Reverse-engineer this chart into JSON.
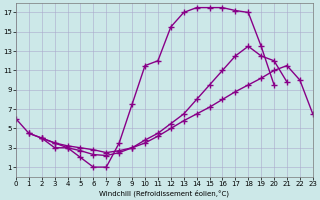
{
  "xlabel": "Windchill (Refroidissement éolien,°C)",
  "bg_color": "#cce8e8",
  "line_color": "#880088",
  "line1": {
    "x": [
      0,
      1,
      2,
      3,
      4,
      5,
      6,
      7,
      8,
      9,
      10,
      11,
      12,
      13,
      14,
      15,
      16,
      17,
      18,
      19,
      20
    ],
    "y": [
      6.0,
      4.5,
      4.0,
      3.0,
      3.0,
      2.0,
      1.0,
      1.0,
      3.5,
      7.5,
      11.5,
      12.0,
      15.5,
      17.0,
      17.5,
      17.5,
      17.5,
      17.2,
      17.0,
      13.5,
      9.5
    ]
  },
  "line2": {
    "x": [
      2,
      3,
      4,
      5,
      6,
      7,
      8,
      9,
      10,
      11,
      12,
      13,
      14,
      15,
      16,
      17,
      18,
      19,
      20,
      21
    ],
    "y": [
      4.0,
      3.5,
      3.0,
      2.7,
      2.3,
      2.2,
      2.5,
      3.0,
      3.8,
      4.5,
      5.5,
      6.5,
      8.0,
      9.5,
      11.0,
      12.5,
      13.5,
      12.5,
      12.0,
      9.8
    ]
  },
  "line3": {
    "x": [
      1,
      2,
      3,
      4,
      5,
      6,
      7,
      8,
      9,
      10,
      11,
      12,
      13,
      14,
      15,
      16,
      17,
      18,
      19,
      20,
      21,
      22,
      23
    ],
    "y": [
      4.5,
      4.0,
      3.5,
      3.2,
      3.0,
      2.8,
      2.5,
      2.7,
      3.0,
      3.5,
      4.2,
      5.0,
      5.8,
      6.5,
      7.2,
      8.0,
      8.8,
      9.5,
      10.2,
      11.0,
      11.5,
      10.0,
      6.5
    ]
  },
  "ylim": [
    0,
    18
  ],
  "xlim": [
    0,
    23
  ],
  "yticks": [
    1,
    3,
    5,
    7,
    9,
    11,
    13,
    15,
    17
  ],
  "xticks": [
    0,
    1,
    2,
    3,
    4,
    5,
    6,
    7,
    8,
    9,
    10,
    11,
    12,
    13,
    14,
    15,
    16,
    17,
    18,
    19,
    20,
    21,
    22,
    23
  ]
}
